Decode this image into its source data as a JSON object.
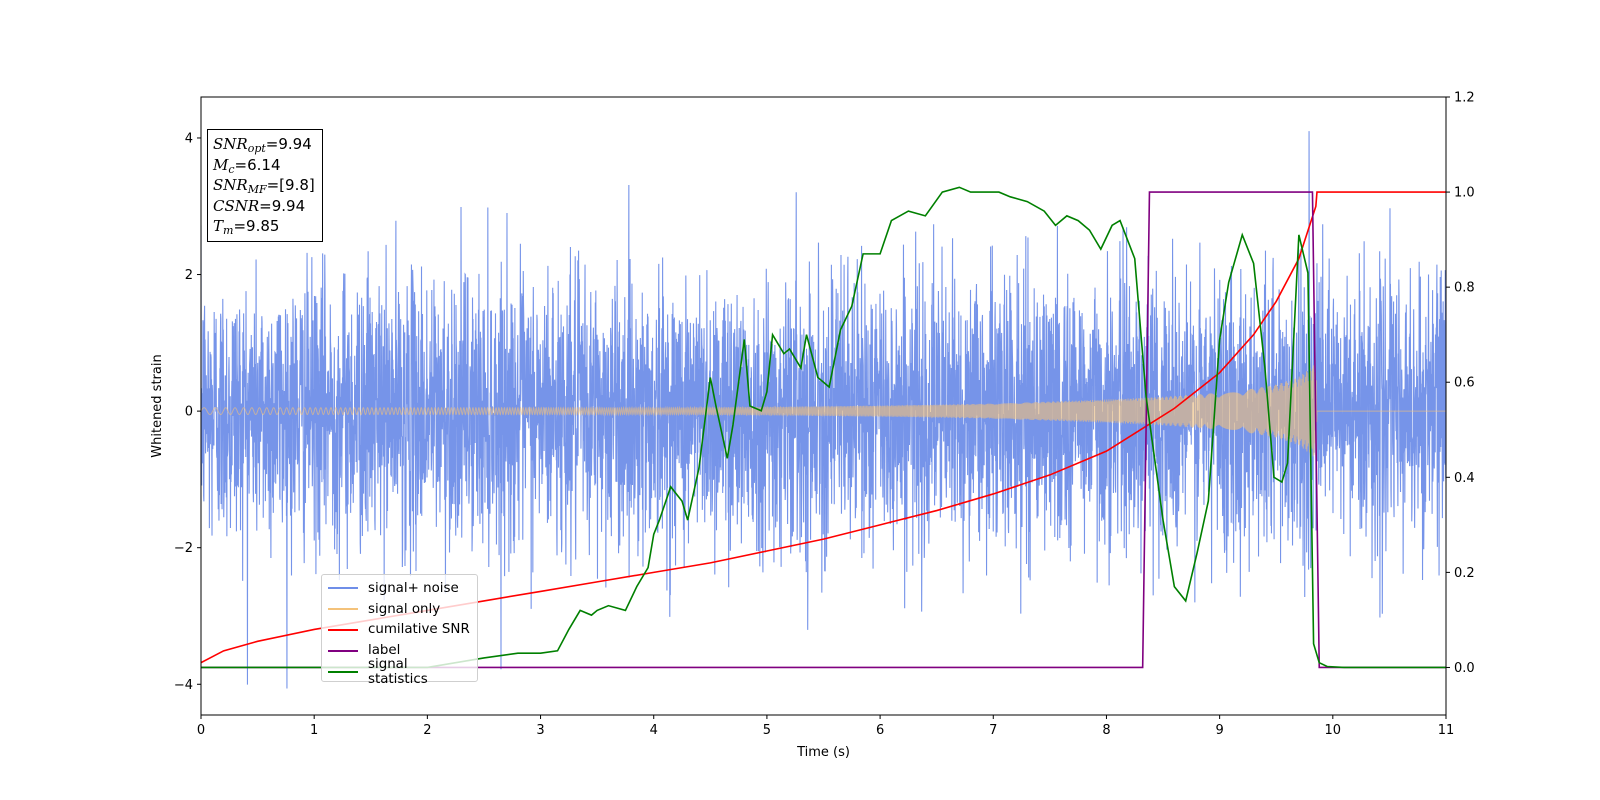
{
  "chart_data": {
    "type": "line",
    "xlabel": "Time (s)",
    "ylabel": "Whitened strain",
    "xlim": [
      0,
      11
    ],
    "ylim_left": [
      -4.45,
      4.6
    ],
    "ylim_right": [
      -0.1,
      1.2
    ],
    "x_ticks": [
      "0",
      "1",
      "2",
      "3",
      "4",
      "5",
      "6",
      "7",
      "8",
      "9",
      "10",
      "11"
    ],
    "y_left_ticks": [
      "−4",
      "−2",
      "0",
      "2",
      "4"
    ],
    "y_right_ticks": [
      "0.0",
      "0.2",
      "0.4",
      "0.6",
      "0.8",
      "1.0",
      "1.2"
    ],
    "annotation": {
      "snr_opt": {
        "name": "SNR",
        "sub": "opt",
        "value": "=9.94"
      },
      "mc": {
        "name": "M",
        "sub": "c",
        "value": "=6.14"
      },
      "snr_mf": {
        "name": "SNR",
        "sub": "MF",
        "value": "=[9.8]"
      },
      "csnr": {
        "name": "CSNR",
        "value": "=9.94"
      },
      "tm": {
        "name": "T",
        "sub": "m",
        "value": "=9.85"
      }
    },
    "legend_position": "lower-left",
    "series": [
      {
        "name": "signal+ noise",
        "color": "#6f8ee8",
        "axis": "left",
        "description_values": {
          "noise_std": 1.0,
          "min": -4.1,
          "max": 4.2
        }
      },
      {
        "name": "signal only",
        "color": "#f4c27a",
        "axis": "left",
        "envelope": {
          "t": [
            0,
            4,
            5,
            6,
            7,
            8,
            8.5,
            9,
            9.3,
            9.5,
            9.7,
            9.85,
            9.86,
            11
          ],
          "amp": [
            0.05,
            0.05,
            0.06,
            0.08,
            0.11,
            0.17,
            0.21,
            0.27,
            0.33,
            0.39,
            0.5,
            0.7,
            0.0,
            0.0
          ]
        }
      },
      {
        "name": "cumilative SNR",
        "color": "#ff0000",
        "axis": "right",
        "x": [
          0,
          0.2,
          0.5,
          1,
          1.5,
          2,
          2.5,
          3,
          3.5,
          4,
          4.5,
          5,
          5.5,
          6,
          6.5,
          7,
          7.5,
          8,
          8.3,
          8.6,
          9,
          9.3,
          9.5,
          9.7,
          9.85,
          9.86,
          11
        ],
        "y": [
          0.01,
          0.035,
          0.055,
          0.08,
          0.1,
          0.12,
          0.14,
          0.16,
          0.18,
          0.2,
          0.22,
          0.245,
          0.27,
          0.3,
          0.33,
          0.365,
          0.405,
          0.455,
          0.5,
          0.545,
          0.62,
          0.7,
          0.77,
          0.86,
          0.97,
          1.0,
          1.0
        ]
      },
      {
        "name": "label",
        "color": "#800080",
        "axis": "right",
        "x": [
          0,
          8.32,
          8.38,
          9.82,
          9.88,
          11
        ],
        "y": [
          0,
          0,
          1,
          1,
          0,
          0
        ]
      },
      {
        "name": "signal statistics",
        "color": "#008000",
        "axis": "right",
        "x": [
          0,
          0.5,
          1,
          2,
          2.5,
          2.8,
          3.0,
          3.15,
          3.25,
          3.35,
          3.45,
          3.5,
          3.6,
          3.75,
          3.85,
          3.95,
          4.0,
          4.05,
          4.15,
          4.25,
          4.3,
          4.4,
          4.5,
          4.55,
          4.65,
          4.7,
          4.8,
          4.85,
          4.95,
          5.0,
          5.05,
          5.15,
          5.2,
          5.3,
          5.35,
          5.45,
          5.55,
          5.65,
          5.75,
          5.85,
          6.0,
          6.1,
          6.25,
          6.4,
          6.55,
          6.7,
          6.8,
          6.85,
          6.95,
          7.05,
          7.15,
          7.3,
          7.45,
          7.55,
          7.65,
          7.75,
          7.85,
          7.95,
          8.05,
          8.12,
          8.25,
          8.35,
          8.5,
          8.6,
          8.7,
          8.8,
          8.9,
          9.0,
          9.08,
          9.2,
          9.3,
          9.4,
          9.48,
          9.55,
          9.6,
          9.7,
          9.78,
          9.83,
          9.88,
          9.95,
          10.1,
          11
        ],
        "y": [
          0.0,
          0.0,
          0.0,
          0.0,
          0.02,
          0.03,
          0.03,
          0.035,
          0.08,
          0.12,
          0.11,
          0.12,
          0.13,
          0.12,
          0.17,
          0.21,
          0.28,
          0.31,
          0.38,
          0.35,
          0.31,
          0.42,
          0.61,
          0.55,
          0.44,
          0.51,
          0.69,
          0.55,
          0.54,
          0.58,
          0.7,
          0.66,
          0.67,
          0.63,
          0.7,
          0.61,
          0.59,
          0.71,
          0.76,
          0.87,
          0.87,
          0.94,
          0.96,
          0.95,
          1.0,
          1.01,
          1.0,
          1.0,
          1.0,
          1.0,
          0.99,
          0.98,
          0.96,
          0.93,
          0.95,
          0.94,
          0.92,
          0.88,
          0.93,
          0.94,
          0.86,
          0.57,
          0.31,
          0.17,
          0.14,
          0.24,
          0.35,
          0.69,
          0.81,
          0.91,
          0.85,
          0.63,
          0.4,
          0.39,
          0.43,
          0.91,
          0.83,
          0.05,
          0.01,
          0.002,
          0.0,
          0.0
        ]
      }
    ]
  }
}
